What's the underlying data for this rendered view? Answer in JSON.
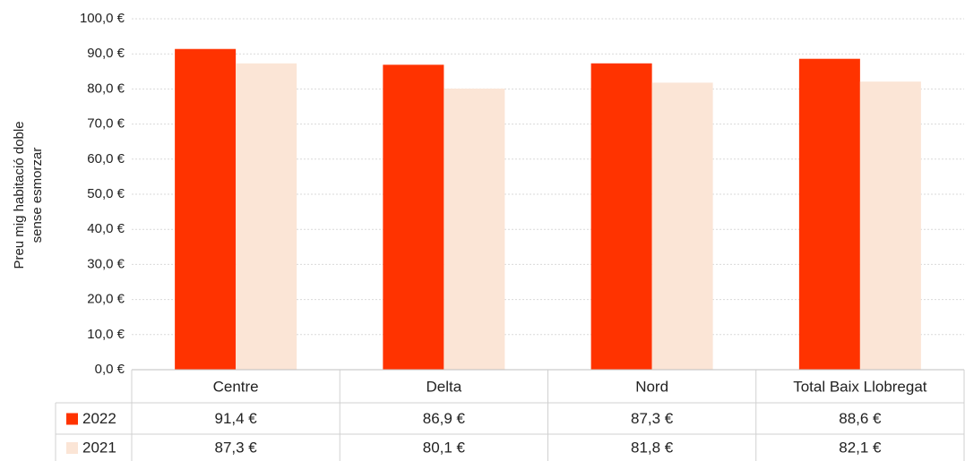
{
  "chart_data": {
    "type": "bar",
    "y_label": [
      "Preu mig habitació doble",
      "sense esmorzar"
    ],
    "categories": [
      "Centre",
      "Delta",
      "Nord",
      "Total Baix Llobregat"
    ],
    "series": [
      {
        "name": "2022",
        "color": "#ff3300",
        "values": [
          91.4,
          86.9,
          87.3,
          88.6
        ],
        "value_labels": [
          "91,4 €",
          "86,9 €",
          "87,3 €",
          "88,6 €"
        ]
      },
      {
        "name": "2021",
        "color": "#fbe5d6",
        "values": [
          87.3,
          80.1,
          81.8,
          82.1
        ],
        "value_labels": [
          "87,3 €",
          "80,1 €",
          "81,8 €",
          "82,1 €"
        ]
      }
    ],
    "ylim": [
      0,
      100
    ],
    "yticks": [
      {
        "value": 0,
        "label": "0,0 €"
      },
      {
        "value": 10,
        "label": "10,0 €"
      },
      {
        "value": 20,
        "label": "20,0 €"
      },
      {
        "value": 30,
        "label": "30,0 €"
      },
      {
        "value": 40,
        "label": "40,0 €"
      },
      {
        "value": 50,
        "label": "50,0 €"
      },
      {
        "value": 60,
        "label": "60,0 €"
      },
      {
        "value": 70,
        "label": "70,0 €"
      },
      {
        "value": 80,
        "label": "80,0 €"
      },
      {
        "value": 90,
        "label": "90,0 €"
      },
      {
        "value": 100,
        "label": "100,0 €"
      }
    ],
    "grid": true
  }
}
